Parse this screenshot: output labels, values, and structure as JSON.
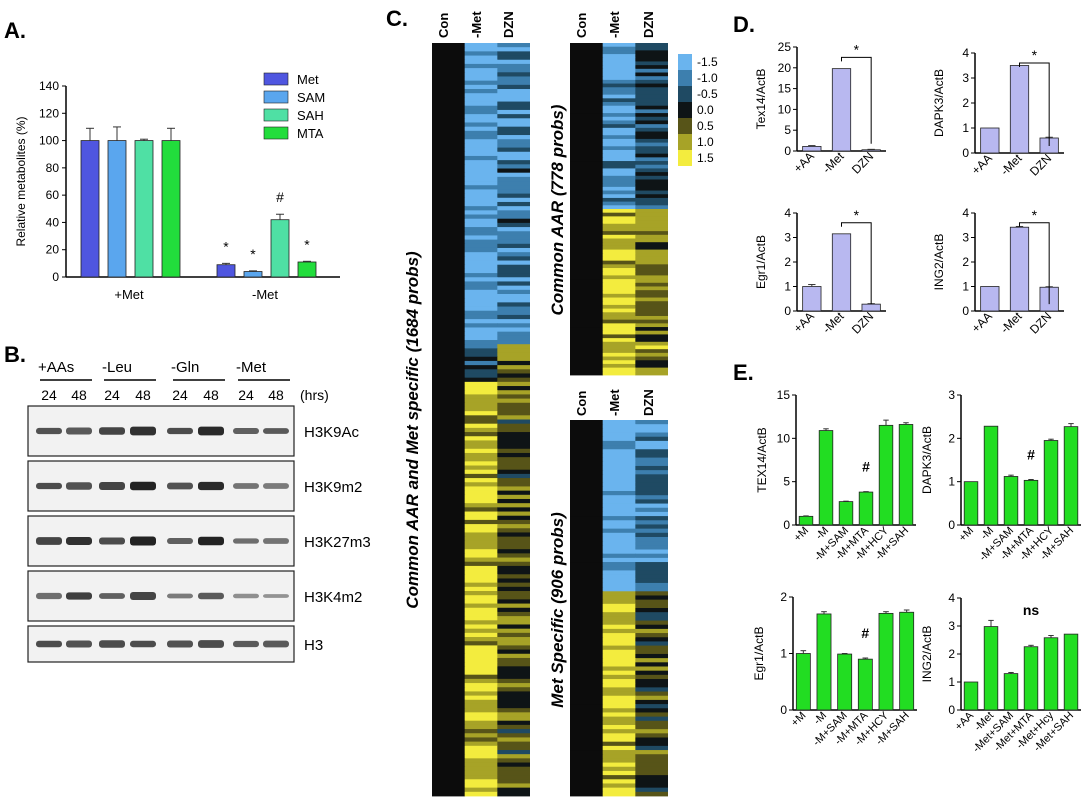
{
  "panel_labels": {
    "a": "A.",
    "b": "B.",
    "c": "C.",
    "d": "D.",
    "e": "E."
  },
  "colors": {
    "met": "#4f56e0",
    "sam": "#5aa6ee",
    "sah": "#4fe0a4",
    "mta": "#22dd3c",
    "lavender": "#b8b8f0",
    "green": "#22dd22",
    "heat_neg": "#5aa0e0",
    "heat_mid": "#0d1a1e",
    "heat_pos": "#f0e040"
  },
  "panelA": {
    "chart_data": {
      "type": "bar",
      "ylabel": "Relative metabolites (%)",
      "ylim": [
        0,
        140
      ],
      "yticks": [
        "0",
        "20",
        "40",
        "60",
        "80",
        "100",
        "120",
        "140"
      ],
      "categories": [
        "+Met",
        "-Met"
      ],
      "series": [
        {
          "name": "Met",
          "values": [
            100,
            9
          ],
          "errors": [
            9,
            1
          ],
          "marks": [
            "",
            "*"
          ]
        },
        {
          "name": "SAM",
          "values": [
            100,
            4
          ],
          "errors": [
            10,
            0.5
          ],
          "marks": [
            "",
            "*"
          ]
        },
        {
          "name": "SAH",
          "values": [
            100,
            42
          ],
          "errors": [
            1,
            4
          ],
          "marks": [
            "",
            "#"
          ]
        },
        {
          "name": "MTA",
          "values": [
            100,
            11
          ],
          "errors": [
            9,
            0.5
          ],
          "marks": [
            "",
            "*"
          ]
        }
      ]
    }
  },
  "panelB": {
    "conditions": [
      "+AAs",
      "-Leu",
      "-Gln",
      "-Met"
    ],
    "times": [
      "24",
      "48",
      "24",
      "48",
      "24",
      "48",
      "24",
      "48"
    ],
    "unit": "(hrs)",
    "blots": [
      "H3K9Ac",
      "H3K9m2",
      "H3K27m3",
      "H3K4m2",
      "H3"
    ]
  },
  "panelC": {
    "heatmap1": {
      "columns": [
        "Con",
        "-Met",
        "DZN"
      ],
      "title": "Common AAR and Met specific (1684 probs)"
    },
    "heatmap2": {
      "columns": [
        "Con",
        "-Met",
        "DZN"
      ],
      "title": "Common AAR (778 probs)"
    },
    "heatmap3": {
      "columns": [
        "Con",
        "-Met",
        "DZN"
      ],
      "title": "Met Specific (906 probs)"
    },
    "scale": [
      "-1.5",
      "-1.0",
      "-0.5",
      "0.0",
      "0.5",
      "1.0",
      "1.5"
    ],
    "scale_colors": [
      "#6ab4ee",
      "#3d7fae",
      "#1f4a63",
      "#0e1416",
      "#575418",
      "#a7a327",
      "#f3ec3e"
    ]
  },
  "panelD": {
    "chart_data": [
      {
        "type": "bar",
        "ylabel": "Tex14/ActB",
        "ylim": [
          0,
          25
        ],
        "yticks": [
          "0",
          "5",
          "10",
          "15",
          "20",
          "25"
        ],
        "categories": [
          "+AA",
          "-Met",
          "DZN"
        ],
        "values": [
          1.1,
          19.8,
          0.3
        ],
        "errors": [
          0.2,
          0,
          0.1
        ],
        "sig": "*"
      },
      {
        "type": "bar",
        "ylabel": "DAPK3/ActB",
        "ylim": [
          0,
          4
        ],
        "yticks": [
          "0",
          "1",
          "2",
          "3",
          "4"
        ],
        "categories": [
          "+AA",
          "-Met",
          "DZN"
        ],
        "values": [
          1.0,
          3.5,
          0.6
        ],
        "errors": [
          0,
          0,
          0.03
        ],
        "sig": "*"
      },
      {
        "type": "bar",
        "ylabel": "Egr1/ActB",
        "ylim": [
          0,
          4
        ],
        "yticks": [
          "0",
          "1",
          "2",
          "3",
          "4"
        ],
        "categories": [
          "+AA",
          "-Met",
          "DZN"
        ],
        "values": [
          1.0,
          3.15,
          0.28
        ],
        "errors": [
          0.08,
          0,
          0.02
        ],
        "sig": "*"
      },
      {
        "type": "bar",
        "ylabel": "ING2/ActB",
        "ylim": [
          0,
          4
        ],
        "yticks": [
          "0",
          "1",
          "2",
          "3",
          "4"
        ],
        "categories": [
          "+AA",
          "-Met",
          "DZN"
        ],
        "values": [
          1.0,
          3.42,
          0.97
        ],
        "errors": [
          0,
          0.03,
          0.02
        ],
        "sig": "*"
      }
    ]
  },
  "panelE": {
    "chart_data": [
      {
        "type": "bar",
        "ylabel": "TEX14/ActB",
        "ylim": [
          0,
          15
        ],
        "yticks": [
          "0",
          "5",
          "10",
          "15"
        ],
        "categories": [
          "+M",
          "-M",
          "-M+SAM",
          "-M+MTA",
          "-M+HCY",
          "-M+SAH"
        ],
        "values": [
          1.0,
          10.9,
          2.7,
          3.8,
          11.5,
          11.6
        ],
        "errors": [
          0.05,
          0.2,
          0.05,
          0.05,
          0.6,
          0.2
        ],
        "mark": "#"
      },
      {
        "type": "bar",
        "ylabel": "DAPK3/ActB",
        "ylim": [
          0,
          3
        ],
        "yticks": [
          "0",
          "1",
          "2",
          "3"
        ],
        "categories": [
          "+M",
          "-M",
          "-M+SAM",
          "-M+MTA",
          "-M+HCY",
          "-M+SAH"
        ],
        "values": [
          1.0,
          2.28,
          1.12,
          1.03,
          1.95,
          2.27
        ],
        "errors": [
          0,
          0,
          0.03,
          0.02,
          0.03,
          0.07
        ],
        "mark": "#"
      },
      {
        "type": "bar",
        "ylabel": "Egr1/ActB",
        "ylim": [
          0,
          2
        ],
        "yticks": [
          "0",
          "1",
          "2"
        ],
        "categories": [
          "+M",
          "-M",
          "-M+SAM",
          "-M+MTA",
          "-M+HCY",
          "-M+SAH"
        ],
        "values": [
          1.0,
          1.7,
          0.99,
          0.9,
          1.71,
          1.73
        ],
        "errors": [
          0.05,
          0.04,
          0.01,
          0.02,
          0.03,
          0.04
        ],
        "mark": "#"
      },
      {
        "type": "bar",
        "ylabel": "ING2/ActB",
        "ylim": [
          0,
          4
        ],
        "yticks": [
          "0",
          "1",
          "2",
          "3",
          "4"
        ],
        "categories": [
          "+AA",
          "-Met",
          "-Met+SAM",
          "-Met+MTA",
          "-Met+Hcy",
          "-Met+SAH"
        ],
        "values": [
          1.0,
          2.98,
          1.3,
          2.26,
          2.58,
          2.71
        ],
        "errors": [
          0,
          0.22,
          0.04,
          0.05,
          0.08,
          0
        ],
        "mark": "ns"
      }
    ]
  }
}
